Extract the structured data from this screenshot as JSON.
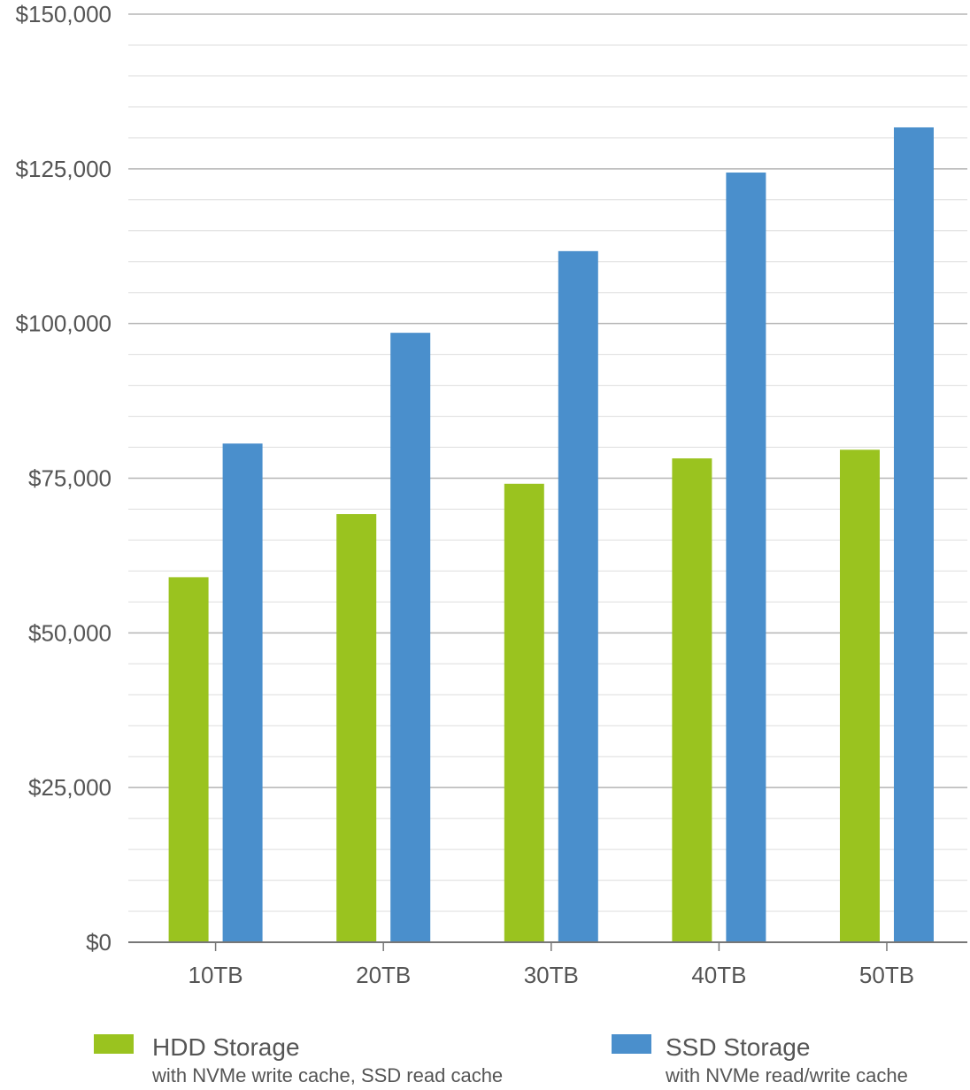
{
  "chart_data": {
    "type": "bar",
    "title": "",
    "xlabel": "",
    "ylabel": "",
    "categories": [
      "10TB",
      "20TB",
      "30TB",
      "40TB",
      "50TB"
    ],
    "series": [
      {
        "name": "HDD Storage",
        "subtitle": "with NVMe write cache, SSD read cache",
        "color": "#9AC31F",
        "values": [
          59000,
          69200,
          74100,
          78200,
          79600
        ]
      },
      {
        "name": "SSD Storage",
        "subtitle": "with NVMe read/write cache",
        "color": "#4A8FCC",
        "values": [
          80600,
          98500,
          111700,
          124400,
          131700
        ]
      }
    ],
    "ylim": [
      0,
      150000
    ],
    "yticks": [
      0,
      25000,
      50000,
      75000,
      100000,
      125000,
      150000
    ],
    "ytick_labels": [
      "$0",
      "$25,000",
      "$50,000",
      "$75,000",
      "$100,000",
      "$125,000",
      "$150,000"
    ],
    "minor_grid_step": 5000,
    "grid": true,
    "legend_position": "bottom"
  }
}
